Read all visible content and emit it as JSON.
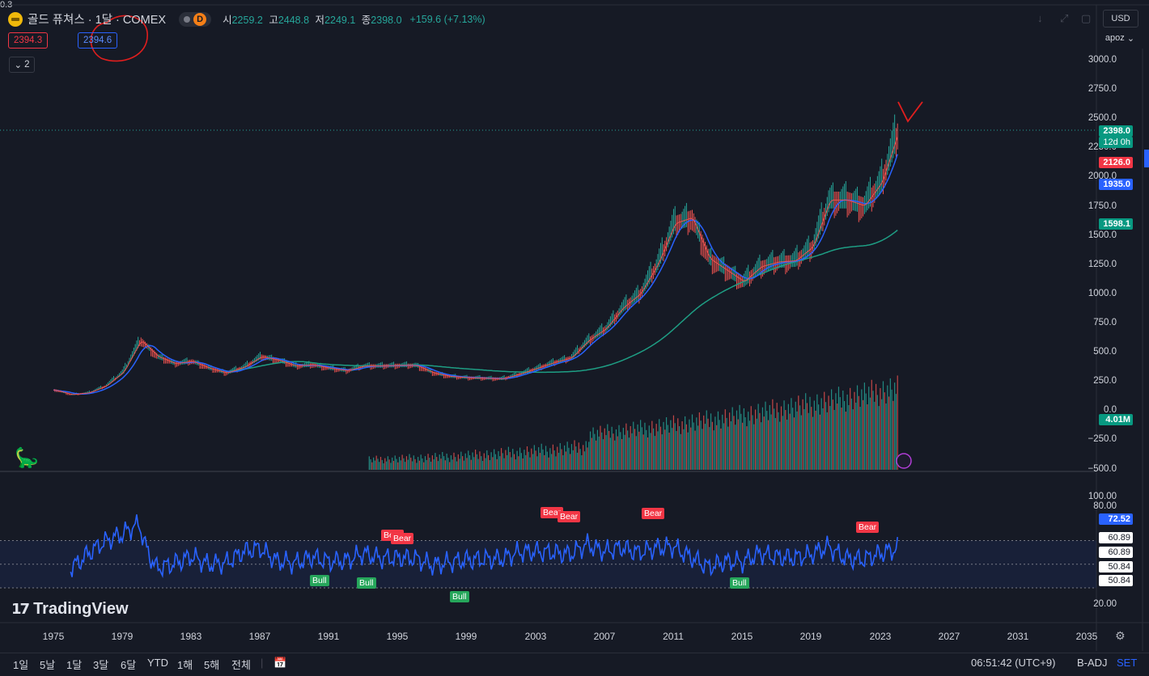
{
  "header": {
    "symbol": "골드 퓨쳐스 · 1달 · COMEX",
    "interval_badge": "D",
    "ohlc": [
      {
        "label": "시",
        "value": "2259.2"
      },
      {
        "label": "고",
        "value": "2448.8"
      },
      {
        "label": "저",
        "value": "2249.1"
      },
      {
        "label": "종",
        "value": "2398.0"
      }
    ],
    "change": "+159.6 (+7.13%)",
    "bid": "2394.3",
    "spread": "0.3",
    "ask": "2394.6",
    "indicator_count": "2"
  },
  "right_controls": {
    "currency": "USD",
    "account": "apoz"
  },
  "price_axis": {
    "labels": [
      "3000.0",
      "2750.0",
      "2500.0",
      "2250.0",
      "2000.0",
      "1750.0",
      "1500.0",
      "1250.0",
      "1000.0",
      "750.0",
      "500.0",
      "250.0",
      "0.0",
      "−250.0",
      "−500.0"
    ],
    "last_price": "2398.0",
    "countdown": "12d 0h",
    "ma_red": "2126.0",
    "ma_blue": "1935.0",
    "ma_green": "1598.1",
    "volume": "4.01M"
  },
  "rsi_axis": {
    "labels": [
      "100.00",
      "80.00",
      "20.00"
    ],
    "current": "72.52",
    "tags": [
      "60.89",
      "60.89",
      "50.84",
      "50.84"
    ]
  },
  "patterns": {
    "bear": "Bear",
    "bull": "Bull"
  },
  "x_axis": [
    "1975",
    "1979",
    "1983",
    "1987",
    "1991",
    "1995",
    "1999",
    "2003",
    "2007",
    "2011",
    "2015",
    "2019",
    "2023",
    "2027",
    "2031",
    "2035"
  ],
  "bottom_toolbar": {
    "ranges": [
      "1일",
      "5날",
      "1달",
      "3달",
      "6달",
      "YTD",
      "1해",
      "5해",
      "전체"
    ],
    "clock": "06:51:42 (UTC+9)",
    "adj": "B-ADJ",
    "set": "SET"
  },
  "branding": "TradingView",
  "colors": {
    "background": "#161a25",
    "up": "#26a69a",
    "down": "#ef5350",
    "ma_blue": "#2962ff",
    "ma_green": "#1e9e84",
    "rsi_line": "#2962ff",
    "annotation": "#e01e1e"
  },
  "chart_data": {
    "type": "line",
    "x": [
      1975,
      1976,
      1977,
      1978,
      1979,
      1980,
      1981,
      1982,
      1983,
      1984,
      1985,
      1986,
      1987,
      1988,
      1989,
      1990,
      1991,
      1992,
      1993,
      1994,
      1995,
      1996,
      1997,
      1998,
      1999,
      2000,
      2001,
      2002,
      2003,
      2004,
      2005,
      2006,
      2007,
      2008,
      2009,
      2010,
      2011,
      2012,
      2013,
      2014,
      2015,
      2016,
      2017,
      2018,
      2019,
      2020,
      2021,
      2022,
      2023,
      2024
    ],
    "series": [
      {
        "values": [
          175,
          135,
          150,
          210,
          330,
          600,
          460,
          400,
          420,
          360,
          320,
          370,
          460,
          430,
          380,
          390,
          360,
          340,
          380,
          380,
          385,
          385,
          320,
          290,
          280,
          275,
          270,
          310,
          360,
          410,
          450,
          600,
          700,
          880,
          1000,
          1250,
          1600,
          1650,
          1300,
          1200,
          1100,
          1230,
          1270,
          1280,
          1400,
          1800,
          1800,
          1750,
          1950,
          2398
        ]
      }
    ]
  }
}
